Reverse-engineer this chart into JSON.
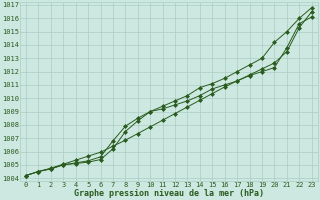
{
  "title": "Graphe pression niveau de la mer (hPa)",
  "background_color": "#cce8e0",
  "grid_color": "#aaccc4",
  "line_color": "#2a5c20",
  "xlim": [
    -0.5,
    23.5
  ],
  "ylim": [
    1003.8,
    1017.2
  ],
  "xticks": [
    0,
    1,
    2,
    3,
    4,
    5,
    6,
    7,
    8,
    9,
    10,
    11,
    12,
    13,
    14,
    15,
    16,
    17,
    18,
    19,
    20,
    21,
    22,
    23
  ],
  "yticks": [
    1004,
    1005,
    1006,
    1007,
    1008,
    1009,
    1010,
    1011,
    1012,
    1013,
    1014,
    1015,
    1016,
    1017
  ],
  "series_smooth": [
    1004.2,
    1004.5,
    1004.75,
    1005.05,
    1005.35,
    1005.65,
    1005.95,
    1006.4,
    1006.85,
    1007.35,
    1007.85,
    1008.35,
    1008.85,
    1009.35,
    1009.85,
    1010.35,
    1010.85,
    1011.3,
    1011.75,
    1012.2,
    1012.65,
    1013.5,
    1015.3,
    1016.5
  ],
  "series_mid": [
    1004.2,
    1004.5,
    1004.7,
    1005.0,
    1005.1,
    1005.2,
    1005.4,
    1006.2,
    1007.5,
    1008.3,
    1009.0,
    1009.2,
    1009.5,
    1009.8,
    1010.2,
    1010.7,
    1011.0,
    1011.3,
    1011.7,
    1012.0,
    1012.3,
    1013.8,
    1015.6,
    1016.1
  ],
  "series_high": [
    1004.2,
    1004.5,
    1004.7,
    1005.0,
    1005.15,
    1005.3,
    1005.6,
    1006.8,
    1007.9,
    1008.5,
    1009.0,
    1009.4,
    1009.8,
    1010.2,
    1010.8,
    1011.1,
    1011.5,
    1012.0,
    1012.5,
    1013.0,
    1014.2,
    1015.0,
    1016.0,
    1016.8
  ],
  "tick_fontsize": 5,
  "label_fontsize": 6
}
